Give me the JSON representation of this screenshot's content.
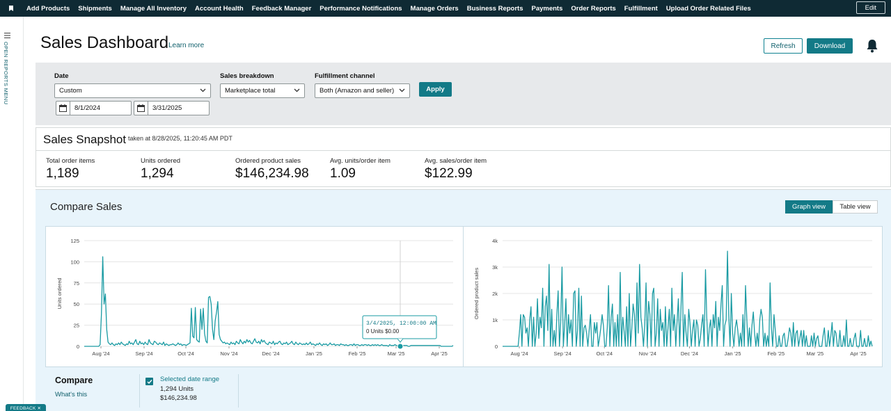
{
  "nav": {
    "items": [
      "Add Products",
      "Shipments",
      "Manage All Inventory",
      "Account Health",
      "Feedback Manager",
      "Performance Notifications",
      "Manage Orders",
      "Business Reports",
      "Payments",
      "Order Reports",
      "Fulfillment",
      "Upload Order Related Files"
    ],
    "edit_label": "Edit"
  },
  "leftrail": {
    "label": "OPEN REPORTS MENU"
  },
  "header": {
    "title": "Sales Dashboard",
    "learn_more": "Learn more",
    "refresh": "Refresh",
    "download": "Download"
  },
  "filters": {
    "date_label": "Date",
    "date_value": "Custom",
    "start_date": "8/1/2024",
    "end_date": "3/31/2025",
    "breakdown_label": "Sales breakdown",
    "breakdown_value": "Marketplace total",
    "fulfillment_label": "Fulfillment channel",
    "fulfillment_value": "Both (Amazon and seller)",
    "apply": "Apply"
  },
  "snapshot": {
    "title": "Sales Snapshot",
    "taken": "taken at 8/28/2025, 11:20:45 AM PDT",
    "metrics": [
      {
        "label": "Total order items",
        "value": "1,189"
      },
      {
        "label": "Units ordered",
        "value": "1,294"
      },
      {
        "label": "Ordered product sales",
        "value": "$146,234.98"
      },
      {
        "label": "Avg. units/order item",
        "value": "1.09"
      },
      {
        "label": "Avg. sales/order item",
        "value": "$122.99"
      }
    ]
  },
  "compare": {
    "title": "Compare Sales",
    "graph_view": "Graph view",
    "table_view": "Table view",
    "compare_label": "Compare",
    "whats_this": "What's this",
    "range_title": "Selected date range",
    "range_units": "1,294 Units",
    "range_sales": "$146,234.98"
  },
  "tooltip": {
    "date": "3/4/2025, 12:00:00 AM",
    "value": "0 Units $0.00"
  },
  "feedback": "FEEDBACK",
  "colors": {
    "nav_bg": "#0f2a34",
    "accent": "#137a87",
    "line": "#1a9ba3",
    "compare_bg": "#e8f4fb"
  },
  "chart_data": [
    {
      "type": "line",
      "ylabel": "Units ordered",
      "ylim": [
        0,
        125
      ],
      "yticks": [
        "0",
        "25",
        "50",
        "75",
        "100",
        "125"
      ],
      "xticks": [
        "Aug '24",
        "Sep '24",
        "Oct '24",
        "Nov '24",
        "Dec '24",
        "Jan '25",
        "Feb '25",
        "Mar '25",
        "Apr '25"
      ],
      "grid": true,
      "x_start": "2024-07-20",
      "x_end": "2025-04-11",
      "series": [
        {
          "values": [
            0,
            0,
            0,
            0,
            0,
            0,
            0,
            0,
            0,
            0,
            0,
            0,
            2,
            38,
            106,
            50,
            62,
            20,
            5,
            3,
            2,
            4,
            2,
            1,
            3,
            2,
            4,
            2,
            5,
            3,
            2,
            1,
            3,
            2,
            6,
            3,
            4,
            2,
            5,
            8,
            3,
            2,
            6,
            3,
            4,
            2,
            5,
            3,
            2,
            8,
            4,
            3,
            2,
            6,
            5,
            3,
            2,
            4,
            3,
            2,
            5,
            1,
            3,
            2,
            1,
            2,
            2,
            3,
            2,
            1,
            2,
            4,
            2,
            3,
            1,
            2,
            2,
            1,
            2,
            3,
            4,
            45,
            12,
            10,
            46,
            8,
            6,
            5,
            44,
            20,
            45,
            15,
            6,
            4,
            58,
            59,
            50,
            20,
            8,
            30,
            40,
            53,
            14,
            8,
            6,
            4,
            5,
            3,
            4,
            3,
            2,
            5,
            3,
            4,
            2,
            6,
            4,
            3,
            8,
            5,
            3,
            6,
            4,
            8,
            5,
            7,
            4,
            3,
            6,
            9,
            5,
            4,
            6,
            3,
            8,
            5,
            7,
            4,
            3,
            2,
            5,
            4,
            3,
            6,
            2,
            4,
            3,
            5,
            6,
            3,
            2,
            4,
            3,
            5,
            2,
            3,
            4,
            6,
            3,
            2,
            5,
            3,
            2,
            4,
            3,
            2,
            3,
            2,
            4,
            2,
            3,
            5,
            2,
            3,
            2,
            1,
            3,
            2,
            4,
            2,
            1,
            3,
            2,
            3,
            1,
            2,
            4,
            2,
            2,
            3,
            1,
            2,
            2,
            1,
            3,
            2,
            2,
            1,
            2,
            1,
            1,
            2,
            2,
            1,
            3,
            1,
            2,
            2,
            1,
            1,
            2,
            1,
            2,
            2,
            1,
            2,
            1,
            1,
            2,
            1,
            2,
            1,
            2,
            1,
            1,
            2,
            1,
            1,
            1,
            1,
            0,
            2,
            1,
            1,
            1,
            2,
            1,
            1,
            1,
            0,
            1,
            1,
            1,
            1,
            1,
            0,
            0,
            1,
            1,
            1,
            1,
            1,
            1,
            1,
            1,
            1,
            1,
            1,
            1,
            1,
            1,
            1,
            1,
            1,
            1,
            1,
            1,
            1,
            1,
            1,
            0,
            0,
            0,
            0,
            0,
            0,
            0,
            0,
            0,
            1
          ]
        }
      ]
    },
    {
      "type": "line",
      "ylabel": "Ordered product sales",
      "ylim": [
        0,
        4000
      ],
      "yticks": [
        "0",
        "1k",
        "2k",
        "3k",
        "4k"
      ],
      "xticks": [
        "Aug '24",
        "Sep '24",
        "Oct '24",
        "Nov '24",
        "Dec '24",
        "Jan '25",
        "Feb '25",
        "Mar '25",
        "Apr '25"
      ],
      "grid": true,
      "x_start": "2024-07-20",
      "x_end": "2025-04-11",
      "series": [
        {
          "values": [
            0,
            0,
            0,
            0,
            0,
            0,
            0,
            0,
            0,
            0,
            0,
            0,
            0,
            500,
            1200,
            0,
            1200,
            1100,
            500,
            700,
            0,
            1000,
            1500,
            0,
            1100,
            0,
            500,
            1800,
            300,
            1100,
            700,
            2200,
            0,
            1500,
            1900,
            600,
            3100,
            0,
            1400,
            0,
            600,
            0,
            1200,
            2100,
            0,
            900,
            3000,
            0,
            800,
            1800,
            0,
            1200,
            500,
            1000,
            0,
            2000,
            2100,
            0,
            600,
            2200,
            0,
            1900,
            0,
            700,
            800,
            500,
            0,
            600,
            1200,
            0,
            0,
            900,
            500,
            900,
            0,
            300,
            700,
            1200,
            800,
            0,
            0,
            700,
            2300,
            0,
            1100,
            1600,
            0,
            900,
            0,
            1200,
            0,
            2800,
            0,
            1100,
            600,
            0,
            1500,
            0,
            2000,
            0,
            700,
            1600,
            1200,
            0,
            2400,
            500,
            3100,
            1100,
            700,
            0,
            800,
            2400,
            0,
            1700,
            1200,
            0,
            2000,
            2200,
            0,
            500,
            1800,
            0,
            1400,
            600,
            900,
            0,
            1500,
            0,
            700,
            1400,
            0,
            2200,
            600,
            1200,
            0,
            900,
            1800,
            0,
            1400,
            2800,
            0,
            1200,
            500,
            0,
            1400,
            900,
            0,
            600,
            1000,
            0,
            1000,
            800,
            0,
            300,
            800,
            1200,
            0,
            2900,
            1100,
            0,
            700,
            1000,
            0,
            1200,
            700,
            1700,
            0,
            1100,
            600,
            1600,
            2300,
            0,
            800,
            1000,
            3600,
            1200,
            0,
            2000,
            500,
            0,
            700,
            1000,
            600,
            0,
            500,
            0,
            1200,
            0,
            2300,
            1000,
            0,
            700,
            0,
            800,
            1300,
            500,
            0,
            500,
            0,
            1000,
            1400,
            1100,
            0,
            500,
            0,
            400,
            0,
            2400,
            700,
            0,
            1200,
            600,
            0,
            0,
            400,
            0,
            0,
            400,
            500,
            0,
            0,
            300,
            700,
            500,
            0,
            900,
            0,
            500,
            600,
            0,
            300,
            600,
            0,
            600,
            0,
            400,
            0,
            0,
            0,
            400,
            0,
            500,
            0,
            300,
            400,
            0,
            0,
            0,
            400,
            700,
            0,
            0,
            600,
            0,
            400,
            900,
            0,
            600,
            500,
            0,
            0,
            600,
            0,
            0,
            400,
            0,
            1000,
            0,
            0,
            300,
            0,
            0,
            300,
            500,
            0,
            0,
            0,
            600,
            0,
            0,
            300,
            0,
            0,
            400,
            0,
            200,
            0
          ]
        }
      ]
    }
  ]
}
